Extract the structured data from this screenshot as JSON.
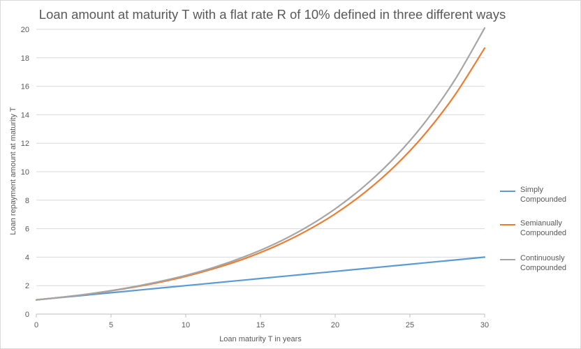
{
  "chart_data": {
    "type": "line",
    "title": "Loan amount at maturity T with a flat rate R of 10% defined in three different ways",
    "xlabel": "Loan maturity T in years",
    "ylabel": "Loan repayment amount at maturity T",
    "xlim": [
      0,
      30
    ],
    "ylim": [
      0,
      20
    ],
    "x_ticks": [
      "0",
      "5",
      "10",
      "15",
      "20",
      "25",
      "30"
    ],
    "y_ticks": [
      "0",
      "2",
      "4",
      "6",
      "8",
      "10",
      "12",
      "14",
      "16",
      "18",
      "20"
    ],
    "grid": "horizontal",
    "legend_position": "right",
    "x": [
      0,
      2,
      4,
      6,
      8,
      10,
      12,
      14,
      16,
      18,
      20,
      22,
      24,
      26,
      28,
      30
    ],
    "series": [
      {
        "name": "Simply Compounded",
        "color": "#5b9bd5",
        "values": [
          1.0,
          1.2,
          1.4,
          1.6,
          1.8,
          2.0,
          2.2,
          2.4,
          2.6,
          2.8,
          3.0,
          3.2,
          3.4,
          3.6,
          3.8,
          4.0
        ]
      },
      {
        "name": "Semianually Compounded",
        "color": "#ed7d31",
        "values": [
          1.0,
          1.22,
          1.48,
          1.8,
          2.18,
          2.65,
          3.23,
          3.92,
          4.77,
          5.8,
          7.04,
          8.56,
          10.4,
          12.64,
          15.37,
          18.68
        ]
      },
      {
        "name": "Continuously Compounded",
        "color": "#a5a5a5",
        "values": [
          1.0,
          1.22,
          1.49,
          1.82,
          2.23,
          2.72,
          3.32,
          4.06,
          4.95,
          6.05,
          7.39,
          9.03,
          11.02,
          13.46,
          16.44,
          20.09
        ]
      }
    ]
  }
}
